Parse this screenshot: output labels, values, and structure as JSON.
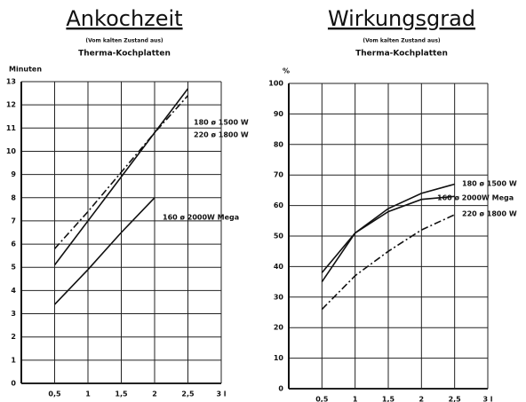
{
  "chart_data": [
    {
      "type": "line",
      "title": "Ankochzeit",
      "subtitle": "(Vom kalten Zustand aus)",
      "subtitle2": "Therma-Kochplatten",
      "ylabel": "Minuten",
      "x": [
        0.5,
        1,
        1.5,
        2,
        2.5
      ],
      "xlim": [
        0,
        3
      ],
      "xticks": [
        {
          "value": 0.5,
          "label": "0,5"
        },
        1,
        {
          "value": 1.5,
          "label": "1,5"
        },
        2,
        {
          "value": 2.5,
          "label": "2,5"
        },
        {
          "value": 3,
          "label": "3 l"
        }
      ],
      "ylim": [
        0,
        13
      ],
      "yticks": [
        0,
        1,
        2,
        3,
        4,
        5,
        6,
        7,
        8,
        9,
        10,
        11,
        12,
        13
      ],
      "grid": true,
      "series": [
        {
          "name": "180 ø 1500 W",
          "color": "#111111",
          "style": "solid",
          "values": [
            5.1,
            7.0,
            8.9,
            10.8,
            12.7
          ]
        },
        {
          "name": "220 ø 1800 W",
          "color": "#111111",
          "style": "dashdot",
          "values": [
            5.8,
            7.4,
            9.1,
            10.8,
            12.4
          ]
        },
        {
          "name": "160 ø 2000W Mega",
          "color": "#111111",
          "style": "solid",
          "values": [
            3.4,
            4.9,
            6.5,
            8.0,
            null
          ]
        }
      ]
    },
    {
      "type": "line",
      "title": "Wirkungsgrad",
      "subtitle": "(Vom kalten Zustand aus)",
      "subtitle2": "Therma-Kochplatten",
      "ylabel": "%",
      "x": [
        0.5,
        1,
        1.5,
        2,
        2.5
      ],
      "xlim": [
        0,
        3
      ],
      "xticks": [
        {
          "value": 0.5,
          "label": "0,5"
        },
        1,
        {
          "value": 1.5,
          "label": "1,5"
        },
        2,
        {
          "value": 2.5,
          "label": "2,5"
        },
        {
          "value": 3,
          "label": "3 l"
        }
      ],
      "ylim": [
        0,
        100
      ],
      "yticks": [
        0,
        10,
        20,
        30,
        40,
        50,
        60,
        70,
        80,
        90,
        100
      ],
      "grid": true,
      "series": [
        {
          "name": "180 ø 1500 W",
          "color": "#111111",
          "style": "solid",
          "values": [
            38,
            51,
            59,
            64,
            67
          ]
        },
        {
          "name": "160 ø 2000W Mega",
          "color": "#111111",
          "style": "solid",
          "values": [
            35,
            51,
            58,
            62,
            63
          ]
        },
        {
          "name": "220 ø 1800 W",
          "color": "#111111",
          "style": "dashdot",
          "values": [
            26,
            37,
            45,
            52,
            57
          ]
        }
      ]
    }
  ]
}
